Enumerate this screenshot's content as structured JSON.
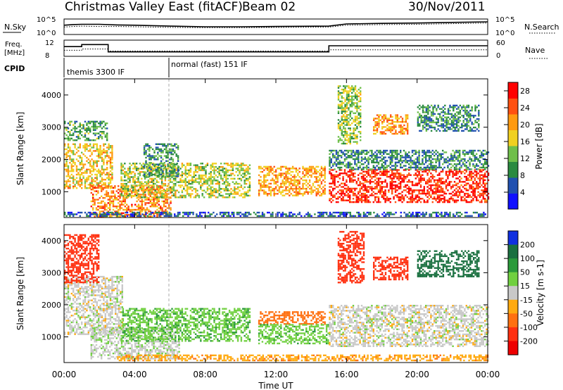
{
  "header": {
    "title": "Christmas Valley East (fitACF)",
    "beam": "Beam 02",
    "date": "30/Nov/2011"
  },
  "colors": {
    "frame": "#000000",
    "marker": "#aaaaaa"
  },
  "strips": {
    "nsky_label": "N.Sky",
    "nsearch_label": "N.Search",
    "freq_label_1": "Freq.",
    "freq_label_2": "[MHz]",
    "nave_label": "Nave",
    "cpid_label": "CPID",
    "nsky_ticks": [
      "10^5",
      "10^0"
    ],
    "nsearch_ticks": [
      "10^5",
      "10^0"
    ],
    "freq_ticks": [
      "12",
      "8"
    ],
    "nave_ticks": [
      "60",
      "0"
    ],
    "modes": [
      "themis 3300 IF",
      "normal (fast) 151 IF"
    ]
  },
  "chart_data": [
    {
      "type": "line",
      "panel": "noise",
      "x": [
        0,
        0.5,
        1,
        2,
        3,
        4,
        6,
        8,
        10,
        12,
        15,
        16,
        18,
        20,
        22,
        24
      ],
      "series": [
        {
          "values": [
            3.0,
            3.2,
            3.3,
            3.3,
            3.1,
            3.0,
            2.7,
            2.5,
            2.5,
            2.6,
            2.7,
            3.4,
            3.6,
            3.7,
            3.9,
            4.1
          ]
        },
        {
          "values": [
            2.4,
            2.6,
            2.7,
            2.6,
            2.6,
            2.5,
            2.3,
            2.2,
            2.2,
            2.3,
            2.4,
            3.0,
            3.2,
            3.3,
            3.5,
            3.7
          ]
        }
      ],
      "ylim": [
        0,
        5
      ]
    },
    {
      "type": "line",
      "panel": "freq_nave",
      "x": [
        0,
        1,
        1,
        2.5,
        2.5,
        15,
        15,
        24
      ],
      "series": [
        {
          "values": [
            10.4,
            10.4,
            10.9,
            10.9,
            9.1,
            9.1,
            10.6,
            10.6
          ]
        },
        {
          "values": [
            9.5,
            9.5,
            9.8,
            9.8,
            9.3,
            9.3,
            9.6,
            9.6
          ]
        }
      ],
      "ylim": [
        8,
        12
      ]
    },
    {
      "type": "heatmap",
      "title": "",
      "xlabel": "",
      "ylabel": "Slant Range [km]",
      "x_ticks": [
        "00:00",
        "04:00",
        "08:00",
        "12:00",
        "16:00",
        "20:00",
        "00:00"
      ],
      "xlim": [
        0,
        24
      ],
      "ylim": [
        200,
        4500
      ],
      "y_ticks": [
        1000,
        2000,
        3000,
        4000
      ],
      "colorbar_label": "Power [dB]",
      "colorbar_ticks": [
        4,
        8,
        12,
        16,
        20,
        24,
        28
      ],
      "clim": [
        0,
        30
      ],
      "colors": [
        "#1010ff",
        "#2050b0",
        "#2a8a40",
        "#6fbf4a",
        "#f0d020",
        "#ff9a10",
        "#ff5010",
        "#ff0000"
      ],
      "regions": [
        {
          "t": [
            0.0,
            2.7
          ],
          "r": [
            1100,
            2500
          ],
          "v": 18
        },
        {
          "t": [
            0.0,
            2.4
          ],
          "r": [
            2600,
            3200
          ],
          "v": 11
        },
        {
          "t": [
            1.5,
            6.0
          ],
          "r": [
            250,
            1200
          ],
          "v": 22
        },
        {
          "t": [
            3.2,
            10.5
          ],
          "r": [
            850,
            1900
          ],
          "v": 15
        },
        {
          "t": [
            4.5,
            6.5
          ],
          "r": [
            1500,
            2500
          ],
          "v": 10
        },
        {
          "t": [
            11.0,
            14.8
          ],
          "r": [
            900,
            1800
          ],
          "v": 20
        },
        {
          "t": [
            15.0,
            24.0
          ],
          "r": [
            700,
            1700
          ],
          "v": 27
        },
        {
          "t": [
            15.0,
            24.0
          ],
          "r": [
            1700,
            2300
          ],
          "v": 9
        },
        {
          "t": [
            15.5,
            16.8
          ],
          "r": [
            2500,
            4300
          ],
          "v": 14
        },
        {
          "t": [
            17.5,
            19.5
          ],
          "r": [
            2800,
            3400
          ],
          "v": 21
        },
        {
          "t": [
            20.0,
            23.5
          ],
          "r": [
            2900,
            3700
          ],
          "v": 9
        },
        {
          "t": [
            0.0,
            24.0
          ],
          "r": [
            250,
            380
          ],
          "v": 6
        }
      ]
    },
    {
      "type": "heatmap",
      "title": "",
      "xlabel": "Time UT",
      "ylabel": "Slant Range [km]",
      "x_ticks": [
        "00:00",
        "04:00",
        "08:00",
        "12:00",
        "16:00",
        "20:00",
        "00:00"
      ],
      "xlim": [
        0,
        24
      ],
      "ylim": [
        200,
        4500
      ],
      "y_ticks": [
        1000,
        2000,
        3000,
        4000
      ],
      "colorbar_label": "Velocity [m s-1]",
      "colorbar_ticks": [
        "200",
        "100",
        "50",
        "15",
        "-15",
        "-50",
        "-100",
        "-200"
      ],
      "colors": [
        "#1030e0",
        "#1a7040",
        "#2a9a3a",
        "#70d040",
        "#c8c8c8",
        "#ffaa10",
        "#ff7010",
        "#ff3010",
        "#ee0000"
      ],
      "regions": [
        {
          "t": [
            0.0,
            3.3
          ],
          "r": [
            1100,
            2900
          ],
          "v": 0
        },
        {
          "t": [
            0.0,
            2.0
          ],
          "r": [
            2700,
            4200
          ],
          "v": -150
        },
        {
          "t": [
            1.5,
            6.5
          ],
          "r": [
            300,
            1300
          ],
          "v": 5
        },
        {
          "t": [
            3.2,
            10.5
          ],
          "r": [
            850,
            1900
          ],
          "v": 40
        },
        {
          "t": [
            11.0,
            14.8
          ],
          "r": [
            1400,
            1800
          ],
          "v": -70
        },
        {
          "t": [
            11.0,
            15.0
          ],
          "r": [
            800,
            1400
          ],
          "v": 35
        },
        {
          "t": [
            15.0,
            24.0
          ],
          "r": [
            700,
            2000
          ],
          "v": 0
        },
        {
          "t": [
            15.5,
            17.0
          ],
          "r": [
            2700,
            4300
          ],
          "v": -180
        },
        {
          "t": [
            17.5,
            19.5
          ],
          "r": [
            2800,
            3500
          ],
          "v": -150
        },
        {
          "t": [
            20.0,
            23.5
          ],
          "r": [
            2900,
            3700
          ],
          "v": 120
        },
        {
          "t": [
            3.0,
            24.0
          ],
          "r": [
            250,
            450
          ],
          "v": -40
        }
      ]
    }
  ]
}
